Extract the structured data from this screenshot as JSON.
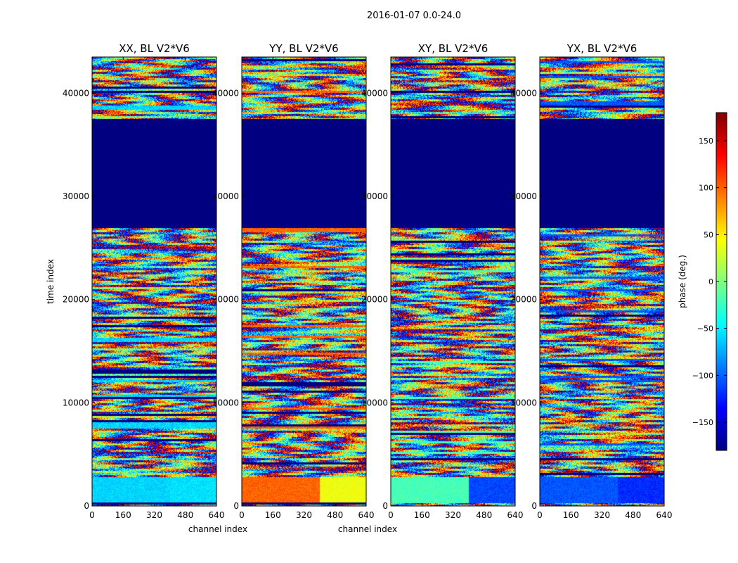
{
  "figure": {
    "suptitle": "2016-01-07 0.0-24.0"
  },
  "chart_data": [
    {
      "type": "heatmap",
      "title": "XX, BL V2*V6",
      "xlabel": "channel index",
      "ylabel": "time index",
      "xlim": [
        0,
        640
      ],
      "ylim": [
        0,
        43500
      ],
      "xticks": [
        0,
        160,
        320,
        480,
        640
      ],
      "yticks": [
        0,
        10000,
        20000,
        30000,
        40000
      ],
      "quiet_band": [
        27000,
        37500
      ],
      "low_band_phase": -60,
      "low_band_phase_right": -55
    },
    {
      "type": "heatmap",
      "title": "YY, BL V2*V6",
      "xlabel": "channel index",
      "ylabel": "",
      "xlim": [
        0,
        640
      ],
      "ylim": [
        0,
        43500
      ],
      "xticks": [
        0,
        160,
        320,
        480,
        640
      ],
      "yticks": [
        0,
        10000,
        20000,
        30000,
        40000
      ],
      "quiet_band": [
        27000,
        37500
      ],
      "low_band_phase": 100,
      "low_band_phase_right": 40
    },
    {
      "type": "heatmap",
      "title": "XY, BL V2*V6",
      "xlabel": "",
      "ylabel": "",
      "xlim": [
        0,
        640
      ],
      "ylim": [
        0,
        43500
      ],
      "xticks": [
        0,
        160,
        320,
        480,
        640
      ],
      "yticks": [
        0,
        10000,
        20000,
        30000,
        40000
      ],
      "quiet_band": [
        27000,
        37500
      ],
      "low_band_phase": -20,
      "low_band_phase_right": -110
    },
    {
      "type": "heatmap",
      "title": "YX, BL V2*V6",
      "xlabel": "",
      "ylabel": "",
      "xlim": [
        0,
        640
      ],
      "ylim": [
        0,
        43500
      ],
      "xticks": [
        0,
        160,
        320,
        480,
        640
      ],
      "yticks": [
        0,
        10000,
        20000,
        30000,
        40000
      ],
      "quiet_band": [
        27000,
        37500
      ],
      "low_band_phase": -105,
      "low_band_phase_right": -120
    }
  ],
  "colorbar": {
    "label": "phase (deg.)",
    "range": [
      -180,
      180
    ],
    "ticks": [
      -150,
      -100,
      -50,
      0,
      50,
      100,
      150
    ],
    "tick_labels": [
      "−150",
      "−100",
      "−50",
      "0",
      "50",
      "100",
      "150"
    ],
    "colormap": "jet"
  }
}
